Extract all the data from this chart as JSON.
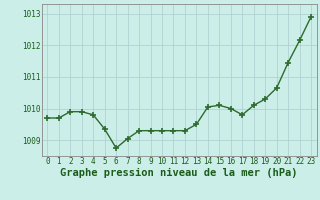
{
  "x": [
    0,
    1,
    2,
    3,
    4,
    5,
    6,
    7,
    8,
    9,
    10,
    11,
    12,
    13,
    14,
    15,
    16,
    17,
    18,
    19,
    20,
    21,
    22,
    23
  ],
  "y": [
    1009.7,
    1009.7,
    1009.9,
    1009.9,
    1009.8,
    1009.35,
    1008.75,
    1009.05,
    1009.3,
    1009.3,
    1009.3,
    1009.3,
    1009.3,
    1009.5,
    1010.05,
    1010.1,
    1010.0,
    1009.8,
    1010.1,
    1010.3,
    1010.65,
    1011.45,
    1012.15,
    1012.9
  ],
  "line_color": "#2d6a2d",
  "marker": "+",
  "markersize": 4,
  "markeredgewidth": 1.2,
  "linewidth": 1.0,
  "bg_color": "#cceee8",
  "grid_color": "#aacccc",
  "xlabel": "Graphe pression niveau de la mer (hPa)",
  "xlabel_color": "#1a5c1a",
  "xlabel_fontsize": 7.5,
  "ylabel_ticks": [
    1009,
    1010,
    1011,
    1012,
    1013
  ],
  "xtick_labels": [
    "0",
    "1",
    "2",
    "3",
    "4",
    "5",
    "6",
    "7",
    "8",
    "9",
    "10",
    "11",
    "12",
    "13",
    "14",
    "15",
    "16",
    "17",
    "18",
    "19",
    "20",
    "21",
    "22",
    "23"
  ],
  "ylim": [
    1008.5,
    1013.3
  ],
  "xlim": [
    -0.5,
    23.5
  ],
  "tick_fontsize": 5.5,
  "tick_color": "#1a5c1a",
  "spine_color": "#888888"
}
